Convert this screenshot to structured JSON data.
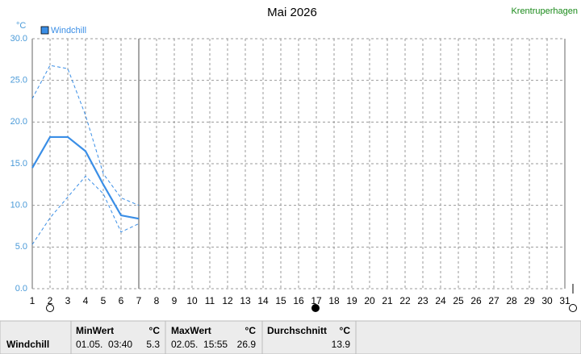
{
  "chart_data": {
    "type": "line",
    "title": "Mai 2026",
    "location": "Krentruperhagen",
    "ylabel": "°C",
    "categories": [
      "1",
      "2",
      "3",
      "4",
      "5",
      "6",
      "7",
      "8",
      "9",
      "10",
      "11",
      "12",
      "13",
      "14",
      "15",
      "16",
      "17",
      "18",
      "19",
      "20",
      "21",
      "22",
      "23",
      "24",
      "25",
      "26",
      "27",
      "28",
      "29",
      "30",
      "31"
    ],
    "series": [
      {
        "name": "Windchill",
        "color": "#3a8ee6",
        "values": [
          14.5,
          18.2,
          18.2,
          16.5,
          12.5,
          8.8,
          8.4,
          null,
          null,
          null,
          null,
          null,
          null,
          null,
          null,
          null,
          null,
          null,
          null,
          null,
          null,
          null,
          null,
          null,
          null,
          null,
          null,
          null,
          null,
          null,
          null
        ]
      },
      {
        "color": "#3a8ee6",
        "dashed": true,
        "values": [
          22.8,
          26.8,
          26.4,
          20.8,
          13.8,
          10.9,
          10.0,
          null,
          null,
          null,
          null,
          null,
          null,
          null,
          null,
          null,
          null,
          null,
          null,
          null,
          null,
          null,
          null,
          null,
          null,
          null,
          null,
          null,
          null,
          null,
          null
        ]
      },
      {
        "color": "#3a8ee6",
        "dashed": true,
        "values": [
          5.3,
          8.5,
          11.0,
          13.5,
          11.4,
          6.8,
          7.8,
          null,
          null,
          null,
          null,
          null,
          null,
          null,
          null,
          null,
          null,
          null,
          null,
          null,
          null,
          null,
          null,
          null,
          null,
          null,
          null,
          null,
          null,
          null,
          null
        ]
      }
    ],
    "ylim": [
      0,
      30
    ],
    "yticks": [
      {
        "value": 0,
        "label": "0.0"
      },
      {
        "value": 5,
        "label": "5.0"
      },
      {
        "value": 10,
        "label": "10.0"
      },
      {
        "value": 15,
        "label": "15.0"
      },
      {
        "value": 20,
        "label": "20.0"
      },
      {
        "value": 25,
        "label": "25.0"
      },
      {
        "value": 30,
        "label": "30.0"
      }
    ],
    "grid": true
  },
  "summary": {
    "name": "Windchill",
    "min": {
      "header": "MinWert",
      "unit": "°C",
      "time": "01.05.  03:40",
      "value": "5.3"
    },
    "max": {
      "header": "MaxWert",
      "unit": "°C",
      "time": "02.05.  15:55",
      "value": "26.9"
    },
    "avg": {
      "header": "Durchschnitt",
      "unit": "°C",
      "value": "13.9"
    }
  }
}
